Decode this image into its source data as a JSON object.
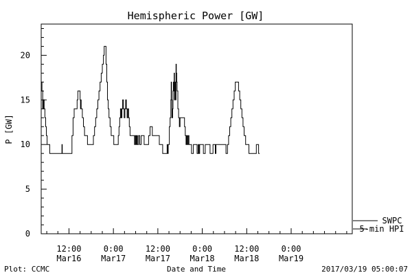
{
  "chart_data": {
    "type": "line",
    "title": "Hemispheric Power [GW]",
    "xlabel": "Date and Time",
    "ylabel": "P [GW]",
    "ylim": [
      0,
      23.5
    ],
    "xlim_hours": [
      0,
      84
    ],
    "yticks": [
      0,
      5,
      10,
      15,
      20
    ],
    "yticklabels": [
      "0",
      "5",
      "10",
      "15",
      "20"
    ],
    "xticks": [
      {
        "hour": 7.5,
        "time": "12:00",
        "date": "Mar16"
      },
      {
        "hour": 19.5,
        "time": "0:00",
        "date": "Mar17"
      },
      {
        "hour": 31.5,
        "time": "12:00",
        "date": "Mar17"
      },
      {
        "hour": 43.5,
        "time": "0:00",
        "date": "Mar18"
      },
      {
        "hour": 55.5,
        "time": "12:00",
        "date": "Mar18"
      },
      {
        "hour": 67.5,
        "time": "0:00",
        "date": "Mar19"
      }
    ],
    "series": [
      {
        "name": "SWPC",
        "points": [
          [
            0.0,
            17
          ],
          [
            0.2,
            16
          ],
          [
            0.4,
            14
          ],
          [
            0.6,
            15
          ],
          [
            0.8,
            14
          ],
          [
            1.0,
            13
          ],
          [
            1.2,
            12
          ],
          [
            1.4,
            11
          ],
          [
            1.6,
            10
          ],
          [
            1.8,
            10
          ],
          [
            2.0,
            10
          ],
          [
            2.3,
            9
          ],
          [
            3.0,
            9
          ],
          [
            4.0,
            9
          ],
          [
            5.5,
            9
          ],
          [
            5.6,
            10
          ],
          [
            5.7,
            9
          ],
          [
            8.0,
            9
          ],
          [
            8.3,
            11
          ],
          [
            8.6,
            13
          ],
          [
            8.9,
            14
          ],
          [
            9.4,
            14
          ],
          [
            9.7,
            15
          ],
          [
            9.9,
            16
          ],
          [
            10.3,
            16
          ],
          [
            10.5,
            15
          ],
          [
            10.6,
            14
          ],
          [
            10.7,
            15
          ],
          [
            10.8,
            14
          ],
          [
            11.1,
            13
          ],
          [
            11.4,
            12
          ],
          [
            11.7,
            11
          ],
          [
            12.2,
            11
          ],
          [
            12.5,
            10
          ],
          [
            13.8,
            10
          ],
          [
            14.1,
            11
          ],
          [
            14.4,
            12
          ],
          [
            14.7,
            13
          ],
          [
            15.0,
            14
          ],
          [
            15.3,
            15
          ],
          [
            15.6,
            16
          ],
          [
            15.9,
            17
          ],
          [
            16.2,
            18
          ],
          [
            16.5,
            19
          ],
          [
            16.8,
            20
          ],
          [
            17.0,
            21
          ],
          [
            17.3,
            21
          ],
          [
            17.5,
            19
          ],
          [
            17.7,
            17
          ],
          [
            17.9,
            15
          ],
          [
            18.1,
            14
          ],
          [
            18.3,
            13
          ],
          [
            18.6,
            12
          ],
          [
            18.9,
            11
          ],
          [
            19.3,
            11
          ],
          [
            19.6,
            10
          ],
          [
            20.5,
            10
          ],
          [
            20.8,
            11
          ],
          [
            21.0,
            12
          ],
          [
            21.2,
            13
          ],
          [
            21.4,
            14
          ],
          [
            21.6,
            13
          ],
          [
            21.8,
            14
          ],
          [
            22.0,
            15
          ],
          [
            22.2,
            14
          ],
          [
            22.4,
            13
          ],
          [
            22.6,
            14
          ],
          [
            22.8,
            15
          ],
          [
            23.0,
            14
          ],
          [
            23.2,
            13
          ],
          [
            23.4,
            14
          ],
          [
            23.6,
            13
          ],
          [
            23.8,
            12
          ],
          [
            24.0,
            11
          ],
          [
            25.0,
            11
          ],
          [
            25.2,
            10
          ],
          [
            25.4,
            11
          ],
          [
            25.6,
            10
          ],
          [
            25.8,
            11
          ],
          [
            26.0,
            10
          ],
          [
            26.3,
            11
          ],
          [
            26.6,
            10
          ],
          [
            27.0,
            11
          ],
          [
            27.6,
            11
          ],
          [
            27.8,
            10
          ],
          [
            28.8,
            10
          ],
          [
            29.0,
            11
          ],
          [
            29.4,
            12
          ],
          [
            29.8,
            12
          ],
          [
            30.0,
            11
          ],
          [
            31.6,
            11
          ],
          [
            31.9,
            10
          ],
          [
            32.5,
            10
          ],
          [
            32.8,
            9
          ],
          [
            33.8,
            9
          ],
          [
            34.0,
            10
          ],
          [
            34.1,
            9
          ],
          [
            34.3,
            10
          ],
          [
            34.6,
            12
          ],
          [
            34.8,
            13
          ],
          [
            35.0,
            15
          ],
          [
            35.1,
            17
          ],
          [
            35.2,
            15
          ],
          [
            35.3,
            13
          ],
          [
            35.5,
            14
          ],
          [
            35.6,
            16
          ],
          [
            35.7,
            17
          ],
          [
            35.8,
            16
          ],
          [
            35.9,
            18
          ],
          [
            36.0,
            15
          ],
          [
            36.1,
            16
          ],
          [
            36.2,
            17
          ],
          [
            36.3,
            15
          ],
          [
            36.4,
            19
          ],
          [
            36.5,
            18
          ],
          [
            36.6,
            17
          ],
          [
            36.7,
            16
          ],
          [
            36.9,
            14
          ],
          [
            37.1,
            13
          ],
          [
            37.3,
            12
          ],
          [
            37.5,
            13
          ],
          [
            38.5,
            13
          ],
          [
            38.7,
            12
          ],
          [
            38.9,
            11
          ],
          [
            39.1,
            10
          ],
          [
            39.3,
            11
          ],
          [
            39.5,
            10
          ],
          [
            39.7,
            11
          ],
          [
            39.9,
            10
          ],
          [
            40.1,
            10
          ],
          [
            40.3,
            10
          ],
          [
            40.6,
            9
          ],
          [
            40.9,
            9
          ],
          [
            41.1,
            10
          ],
          [
            42.0,
            10
          ],
          [
            42.1,
            9
          ],
          [
            42.4,
            10
          ],
          [
            42.6,
            9
          ],
          [
            42.8,
            10
          ],
          [
            43.6,
            10
          ],
          [
            43.8,
            9
          ],
          [
            44.1,
            9
          ],
          [
            44.3,
            10
          ],
          [
            45.3,
            10
          ],
          [
            45.6,
            9
          ],
          [
            46.2,
            9
          ],
          [
            46.4,
            10
          ],
          [
            46.8,
            10
          ],
          [
            47.0,
            9
          ],
          [
            47.2,
            10
          ],
          [
            49.6,
            10
          ],
          [
            49.9,
            9
          ],
          [
            50.3,
            10
          ],
          [
            50.6,
            11
          ],
          [
            50.9,
            12
          ],
          [
            51.2,
            13
          ],
          [
            51.5,
            14
          ],
          [
            51.8,
            15
          ],
          [
            52.1,
            16
          ],
          [
            52.4,
            17
          ],
          [
            53.0,
            17
          ],
          [
            53.3,
            16
          ],
          [
            53.6,
            15
          ],
          [
            53.9,
            14
          ],
          [
            54.2,
            13
          ],
          [
            54.5,
            12
          ],
          [
            54.8,
            11
          ],
          [
            55.2,
            10
          ],
          [
            55.8,
            10
          ],
          [
            56.1,
            9
          ],
          [
            57.8,
            9
          ],
          [
            58.1,
            10
          ],
          [
            58.5,
            10
          ],
          [
            58.7,
            9
          ],
          [
            59.0,
            9
          ]
        ]
      }
    ],
    "legend": [
      "SWPC",
      "5-min HPI"
    ],
    "legend_position": "right-bottom outside"
  },
  "footer": {
    "left": "Plot: CCMC",
    "center": "Date and Time",
    "right": "2017/03/19 05:00:07"
  }
}
